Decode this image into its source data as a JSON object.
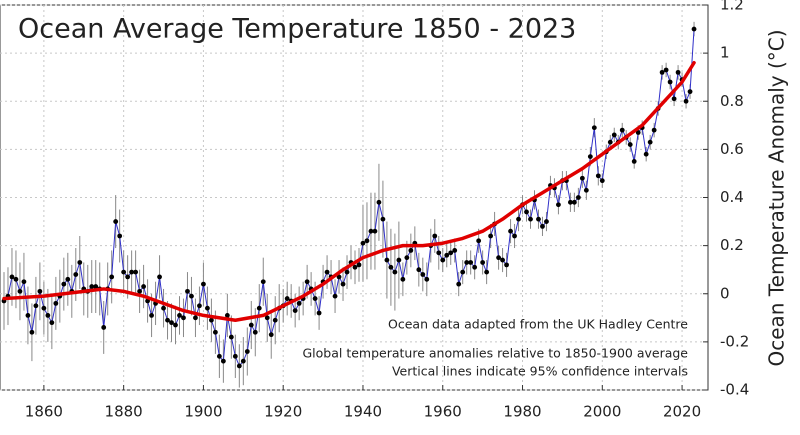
{
  "chart_data": {
    "type": "line",
    "title": "Ocean Average Temperature 1850 - 2023",
    "y_label": "Ocean Temperature Anomaly (°C)",
    "annotations": [
      "Ocean data adapted from the UK Hadley Centre",
      "Global temperature anomalies relative to 1850-1900 average",
      "Vertical lines indicate 95% confidence intervals"
    ],
    "xlim": [
      1849,
      2026.5
    ],
    "ylim": [
      -0.4,
      1.2
    ],
    "xticks": [
      1860,
      1880,
      1900,
      1920,
      1940,
      1960,
      1980,
      2000,
      2020
    ],
    "yticks": [
      -0.4,
      -0.2,
      0,
      0.2,
      0.4,
      0.6,
      0.8,
      1,
      1.2
    ],
    "grid": true,
    "x": [
      1850,
      1851,
      1852,
      1853,
      1854,
      1855,
      1856,
      1857,
      1858,
      1859,
      1860,
      1861,
      1862,
      1863,
      1864,
      1865,
      1866,
      1867,
      1868,
      1869,
      1870,
      1871,
      1872,
      1873,
      1874,
      1875,
      1876,
      1877,
      1878,
      1879,
      1880,
      1881,
      1882,
      1883,
      1884,
      1885,
      1886,
      1887,
      1888,
      1889,
      1890,
      1891,
      1892,
      1893,
      1894,
      1895,
      1896,
      1897,
      1898,
      1899,
      1900,
      1901,
      1902,
      1903,
      1904,
      1905,
      1906,
      1907,
      1908,
      1909,
      1910,
      1911,
      1912,
      1913,
      1914,
      1915,
      1916,
      1917,
      1918,
      1919,
      1920,
      1921,
      1922,
      1923,
      1924,
      1925,
      1926,
      1927,
      1928,
      1929,
      1930,
      1931,
      1932,
      1933,
      1934,
      1935,
      1936,
      1937,
      1938,
      1939,
      1940,
      1941,
      1942,
      1943,
      1944,
      1945,
      1946,
      1947,
      1948,
      1949,
      1950,
      1951,
      1952,
      1953,
      1954,
      1955,
      1956,
      1957,
      1958,
      1959,
      1960,
      1961,
      1962,
      1963,
      1964,
      1965,
      1966,
      1967,
      1968,
      1969,
      1970,
      1971,
      1972,
      1973,
      1974,
      1975,
      1976,
      1977,
      1978,
      1979,
      1980,
      1981,
      1982,
      1983,
      1984,
      1985,
      1986,
      1987,
      1988,
      1989,
      1990,
      1991,
      1992,
      1993,
      1994,
      1995,
      1996,
      1997,
      1998,
      1999,
      2000,
      2001,
      2002,
      2003,
      2004,
      2005,
      2006,
      2007,
      2008,
      2009,
      2010,
      2011,
      2012,
      2013,
      2014,
      2015,
      2016,
      2017,
      2018,
      2019,
      2020,
      2021,
      2022,
      2023
    ],
    "series": [
      {
        "color": "#2f2fc8",
        "marker_color": "#000000",
        "error_color": "#888888",
        "values": [
          -0.03,
          -0.01,
          0.07,
          0.06,
          0.01,
          0.05,
          -0.09,
          -0.16,
          -0.05,
          0.01,
          -0.06,
          -0.09,
          -0.12,
          -0.04,
          -0.01,
          0.04,
          0.06,
          0.01,
          0.08,
          0.13,
          0.02,
          0.01,
          0.03,
          0.03,
          0.02,
          -0.14,
          0.02,
          0.07,
          0.3,
          0.24,
          0.09,
          0.07,
          0.09,
          0.09,
          0.01,
          0.03,
          -0.03,
          -0.09,
          -0.04,
          0.07,
          -0.06,
          -0.11,
          -0.12,
          -0.13,
          -0.09,
          -0.1,
          0.01,
          -0.01,
          -0.1,
          -0.05,
          0.04,
          -0.06,
          -0.11,
          -0.16,
          -0.26,
          -0.28,
          -0.09,
          -0.18,
          -0.26,
          -0.3,
          -0.28,
          -0.24,
          -0.13,
          -0.16,
          -0.06,
          0.05,
          -0.1,
          -0.17,
          -0.11,
          -0.06,
          -0.05,
          -0.02,
          -0.03,
          -0.07,
          -0.04,
          -0.02,
          0.05,
          0.02,
          -0.02,
          -0.08,
          0.05,
          0.09,
          0.07,
          -0.01,
          0.07,
          0.04,
          0.09,
          0.13,
          0.11,
          0.12,
          0.21,
          0.22,
          0.26,
          0.26,
          0.38,
          0.31,
          0.14,
          0.11,
          0.09,
          0.14,
          0.06,
          0.15,
          0.18,
          0.21,
          0.1,
          0.08,
          0.06,
          0.2,
          0.24,
          0.17,
          0.14,
          0.16,
          0.17,
          0.18,
          0.04,
          0.09,
          0.13,
          0.13,
          0.11,
          0.22,
          0.13,
          0.09,
          0.24,
          0.29,
          0.15,
          0.14,
          0.12,
          0.26,
          0.24,
          0.31,
          0.37,
          0.34,
          0.31,
          0.39,
          0.31,
          0.28,
          0.3,
          0.45,
          0.44,
          0.37,
          0.47,
          0.47,
          0.38,
          0.38,
          0.4,
          0.48,
          0.43,
          0.57,
          0.69,
          0.49,
          0.47,
          0.59,
          0.63,
          0.66,
          0.63,
          0.68,
          0.65,
          0.62,
          0.55,
          0.67,
          0.69,
          0.58,
          0.63,
          0.68,
          0.77,
          0.92,
          0.93,
          0.88,
          0.81,
          0.92,
          0.89,
          0.8,
          0.84,
          1.1
        ],
        "errors": [
          0.12,
          0.12,
          0.12,
          0.12,
          0.12,
          0.12,
          0.12,
          0.12,
          0.12,
          0.12,
          0.11,
          0.11,
          0.11,
          0.11,
          0.11,
          0.11,
          0.11,
          0.11,
          0.11,
          0.11,
          0.11,
          0.11,
          0.11,
          0.11,
          0.11,
          0.11,
          0.11,
          0.11,
          0.11,
          0.11,
          0.09,
          0.09,
          0.09,
          0.09,
          0.09,
          0.09,
          0.09,
          0.09,
          0.09,
          0.09,
          0.08,
          0.08,
          0.08,
          0.08,
          0.08,
          0.08,
          0.08,
          0.08,
          0.08,
          0.08,
          0.09,
          0.09,
          0.09,
          0.09,
          0.09,
          0.09,
          0.09,
          0.09,
          0.09,
          0.09,
          0.1,
          0.1,
          0.1,
          0.1,
          0.1,
          0.1,
          0.1,
          0.1,
          0.1,
          0.1,
          0.07,
          0.07,
          0.07,
          0.07,
          0.07,
          0.07,
          0.07,
          0.07,
          0.07,
          0.07,
          0.07,
          0.07,
          0.07,
          0.07,
          0.07,
          0.07,
          0.07,
          0.07,
          0.07,
          0.07,
          0.16,
          0.16,
          0.16,
          0.16,
          0.16,
          0.16,
          0.16,
          0.16,
          0.16,
          0.16,
          0.07,
          0.07,
          0.07,
          0.07,
          0.07,
          0.07,
          0.07,
          0.07,
          0.07,
          0.07,
          0.05,
          0.05,
          0.05,
          0.05,
          0.05,
          0.05,
          0.05,
          0.05,
          0.05,
          0.05,
          0.05,
          0.05,
          0.05,
          0.05,
          0.05,
          0.05,
          0.05,
          0.05,
          0.05,
          0.05,
          0.04,
          0.04,
          0.04,
          0.04,
          0.04,
          0.04,
          0.04,
          0.04,
          0.04,
          0.04,
          0.04,
          0.04,
          0.04,
          0.04,
          0.04,
          0.04,
          0.04,
          0.04,
          0.04,
          0.04,
          0.03,
          0.03,
          0.03,
          0.03,
          0.03,
          0.03,
          0.03,
          0.03,
          0.03,
          0.03,
          0.03,
          0.03,
          0.03,
          0.03,
          0.03,
          0.03,
          0.03,
          0.03,
          0.03,
          0.03,
          0.03,
          0.03,
          0.03,
          0.03
        ]
      },
      {
        "color": "#e00000",
        "x": [
          1850,
          1860,
          1870,
          1875,
          1880,
          1885,
          1890,
          1895,
          1900,
          1908,
          1915,
          1920,
          1925,
          1930,
          1935,
          1940,
          1945,
          1950,
          1955,
          1960,
          1965,
          1970,
          1975,
          1980,
          1985,
          1990,
          1995,
          2000,
          2005,
          2010,
          2015,
          2020,
          2023
        ],
        "values": [
          -0.02,
          -0.01,
          0.01,
          0.02,
          0.01,
          -0.01,
          -0.04,
          -0.07,
          -0.09,
          -0.11,
          -0.09,
          -0.05,
          -0.01,
          0.04,
          0.1,
          0.15,
          0.18,
          0.2,
          0.2,
          0.21,
          0.23,
          0.26,
          0.31,
          0.37,
          0.42,
          0.47,
          0.52,
          0.58,
          0.64,
          0.7,
          0.79,
          0.88,
          0.96
        ]
      }
    ]
  }
}
